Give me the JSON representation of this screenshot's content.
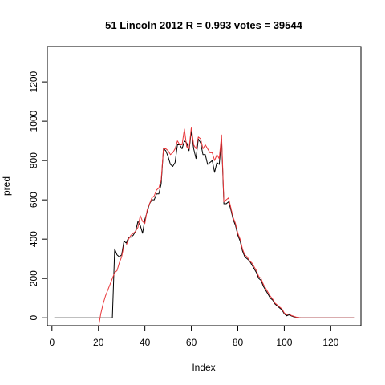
{
  "chart_data": {
    "type": "line",
    "title": "51 Lincoln 2012 R = 0.993 votes = 39544",
    "xlabel": "Index",
    "ylabel": "pred",
    "xlim": [
      -2,
      133
    ],
    "ylim": [
      -40,
      1380
    ],
    "x_ticks": [
      0,
      20,
      40,
      60,
      80,
      100,
      120
    ],
    "y_ticks": [
      0,
      200,
      400,
      600,
      800,
      1000,
      1200
    ],
    "grid": false,
    "series": [
      {
        "color": "#000000",
        "x": [
          1,
          5,
          10,
          15,
          20,
          25,
          26,
          27,
          28,
          29,
          30,
          31,
          32,
          33,
          34,
          35,
          36,
          37,
          38,
          39,
          40,
          41,
          42,
          43,
          44,
          45,
          46,
          47,
          48,
          49,
          50,
          51,
          52,
          53,
          54,
          55,
          56,
          57,
          58,
          59,
          60,
          61,
          62,
          63,
          64,
          65,
          66,
          67,
          68,
          69,
          70,
          71,
          72,
          73,
          74,
          75,
          76,
          77,
          78,
          79,
          80,
          81,
          82,
          83,
          84,
          85,
          86,
          87,
          88,
          89,
          90,
          91,
          92,
          93,
          94,
          95,
          96,
          97,
          98,
          99,
          100,
          101,
          102,
          103,
          104,
          105,
          106,
          107,
          108,
          110,
          115,
          120,
          125,
          130
        ],
        "y": [
          0,
          0,
          0,
          0,
          0,
          0,
          0,
          350,
          320,
          310,
          320,
          390,
          380,
          410,
          410,
          420,
          440,
          490,
          470,
          430,
          500,
          540,
          580,
          600,
          600,
          630,
          630,
          680,
          860,
          850,
          820,
          780,
          770,
          790,
          880,
          880,
          860,
          900,
          890,
          850,
          950,
          860,
          810,
          910,
          890,
          830,
          830,
          780,
          790,
          800,
          740,
          790,
          780,
          910,
          580,
          580,
          590,
          550,
          500,
          470,
          420,
          390,
          340,
          310,
          300,
          290,
          270,
          250,
          230,
          200,
          190,
          160,
          140,
          120,
          100,
          90,
          70,
          60,
          50,
          40,
          20,
          10,
          15,
          10,
          5,
          3,
          2,
          0,
          0,
          0,
          0,
          0,
          0,
          0
        ]
      },
      {
        "color": "#e8363a",
        "x": [
          20,
          21,
          22,
          23,
          24,
          25,
          26,
          27,
          28,
          29,
          30,
          31,
          32,
          33,
          34,
          35,
          36,
          37,
          38,
          39,
          40,
          41,
          42,
          43,
          44,
          45,
          46,
          47,
          48,
          49,
          50,
          51,
          52,
          53,
          54,
          55,
          56,
          57,
          58,
          59,
          60,
          61,
          62,
          63,
          64,
          65,
          66,
          67,
          68,
          69,
          70,
          71,
          72,
          73,
          74,
          75,
          76,
          77,
          78,
          79,
          80,
          81,
          82,
          83,
          84,
          85,
          86,
          87,
          88,
          89,
          90,
          91,
          92,
          93,
          94,
          95,
          96,
          97,
          98,
          99,
          100,
          101,
          102,
          103,
          104,
          105,
          106,
          107,
          108,
          110,
          115,
          120,
          125,
          130
        ],
        "y": [
          -50,
          20,
          70,
          110,
          140,
          170,
          200,
          230,
          240,
          280,
          310,
          370,
          370,
          400,
          420,
          430,
          440,
          460,
          520,
          490,
          480,
          550,
          580,
          610,
          620,
          650,
          660,
          700,
          860,
          860,
          850,
          830,
          840,
          860,
          900,
          880,
          880,
          960,
          870,
          860,
          970,
          880,
          860,
          920,
          910,
          860,
          880,
          860,
          840,
          840,
          800,
          830,
          810,
          930,
          590,
          600,
          610,
          560,
          510,
          480,
          430,
          400,
          350,
          320,
          310,
          290,
          280,
          260,
          240,
          210,
          200,
          170,
          150,
          130,
          110,
          95,
          75,
          65,
          55,
          45,
          25,
          15,
          20,
          12,
          8,
          4,
          2,
          0,
          0,
          0,
          0,
          0,
          0,
          0
        ]
      }
    ]
  }
}
